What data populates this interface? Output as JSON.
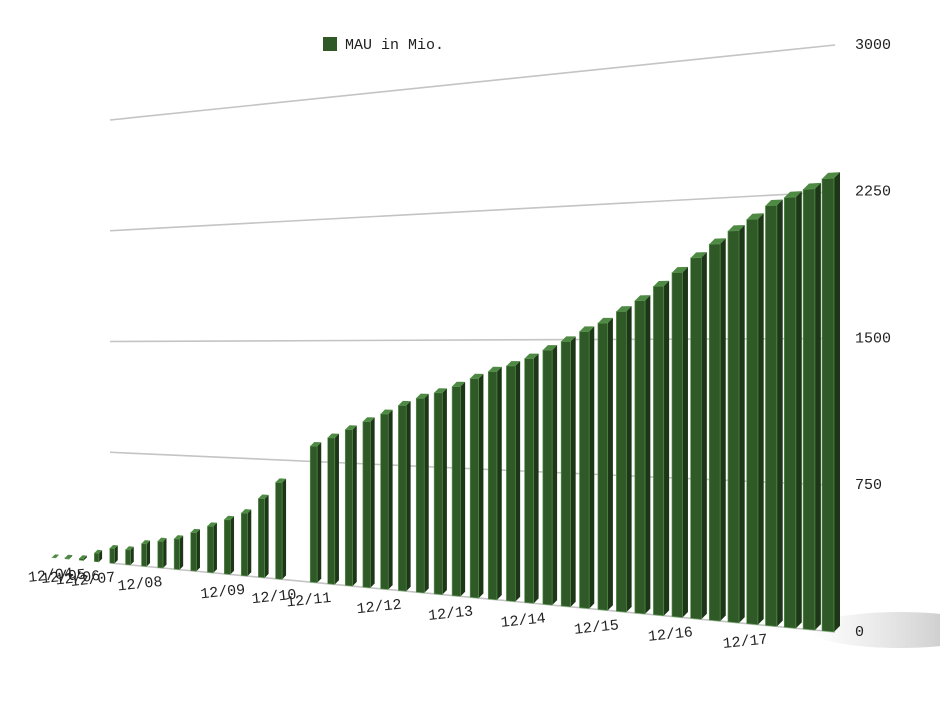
{
  "chart_data": {
    "type": "bar",
    "legend": "MAU in Mio.",
    "color": "#2f5a27",
    "series": [
      {
        "name": "MAU in Mio.",
        "color": "#2f5a27",
        "values": [
          1,
          6,
          12,
          58,
          100,
          100,
          150,
          175,
          200,
          250,
          300,
          350,
          400,
          500,
          608,
          null,
          845,
          901,
          955,
          1007,
          1056,
          1110,
          1155,
          1189,
          1228,
          1276,
          1317,
          1350,
          1393,
          1441,
          1490,
          1545,
          1591,
          1654,
          1712,
          1788,
          1860,
          1936,
          2006,
          2072,
          2129,
          2196,
          2234,
          2271,
          2320
        ]
      }
    ],
    "categories": [
      "12/04",
      "12/05",
      "12/06",
      "12/07",
      null,
      null,
      "12/08",
      null,
      null,
      null,
      null,
      "12/09",
      null,
      null,
      "12/10",
      null,
      "12/11",
      null,
      null,
      null,
      "12/12",
      null,
      null,
      null,
      "12/13",
      null,
      null,
      null,
      "12/14",
      null,
      null,
      null,
      "12/15",
      null,
      null,
      null,
      "12/16",
      null,
      null,
      null,
      "12/17",
      null,
      null,
      null,
      null
    ],
    "ylim": [
      0,
      3000
    ],
    "yticks": [
      0,
      750,
      1500,
      2250,
      3000
    ],
    "grid": true
  }
}
